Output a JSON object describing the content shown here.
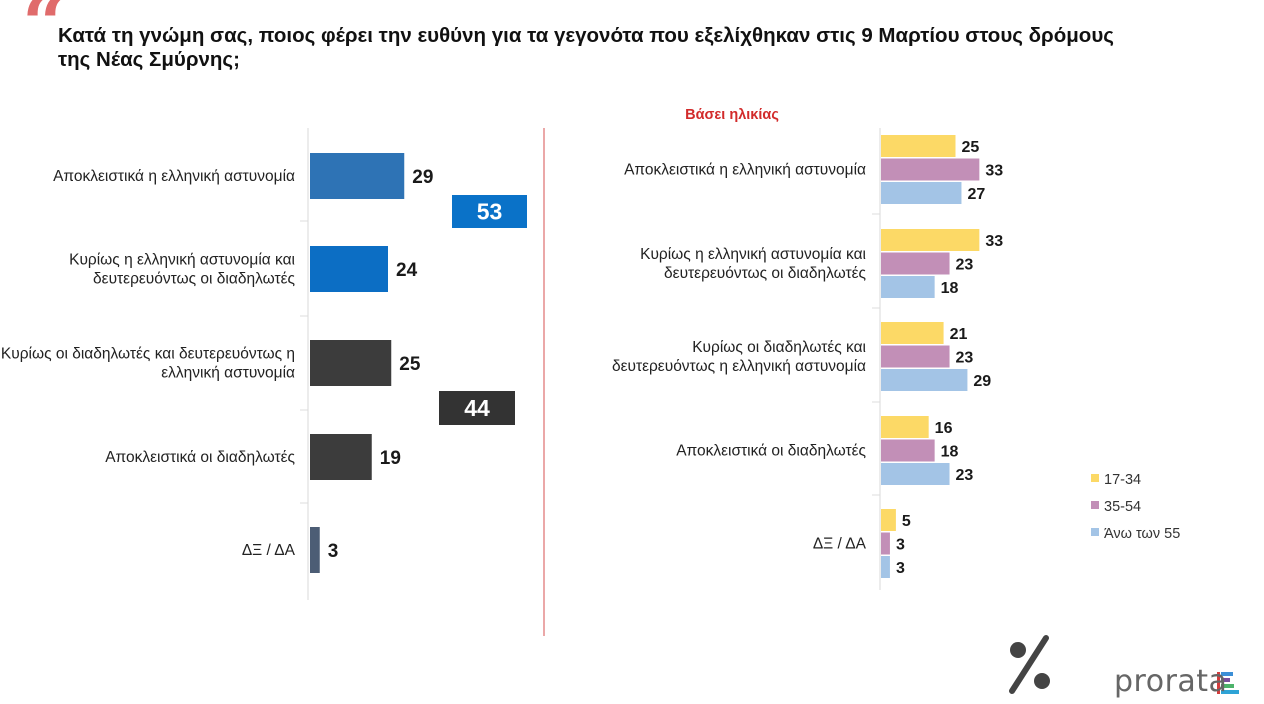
{
  "header": {
    "quote_glyph": "“",
    "title": "Κατά τη γνώμη σας, ποιος φέρει την ευθύνη για τα γεγονότα που εξελίχθηκαν στις 9 Μαρτίου στους δρόμους της Νέας Σμύρνης;"
  },
  "brand": {
    "name": "prorata",
    "logo_symbol": "%"
  },
  "chart_data": [
    {
      "type": "bar",
      "orientation": "horizontal",
      "title": "",
      "categories": [
        "Αποκλειστικά η ελληνική αστυνομία",
        "Κυρίως η ελληνική αστυνομία και δευτερευόντως οι διαδηλωτές",
        "Κυρίως οι διαδηλωτές και δευτερευόντως η ελληνική αστυνομία",
        "Αποκλειστικά οι διαδηλωτές",
        "ΔΞ / ΔΑ"
      ],
      "values": [
        29,
        24,
        25,
        19,
        3
      ],
      "colors": [
        "#2e73b5",
        "#0c6ec4",
        "#3c3c3c",
        "#3c3c3c",
        "#4c5d75"
      ],
      "totals": [
        {
          "label": "53",
          "sum_of": [
            0,
            1
          ],
          "color": "#0a72c8"
        },
        {
          "label": "44",
          "sum_of": [
            2,
            3
          ],
          "color": "#333333"
        }
      ],
      "xlim": [
        0,
        60
      ]
    },
    {
      "type": "bar",
      "orientation": "horizontal",
      "title": "Βάσει ηλικίας",
      "categories": [
        "Αποκλειστικά η ελληνική αστυνομία",
        "Κυρίως η ελληνική αστυνομία και δευτερευόντως οι διαδηλωτές",
        "Κυρίως οι διαδηλωτές και δευτερευόντως η ελληνική αστυνομία",
        "Αποκλειστικά οι διαδηλωτές",
        "ΔΞ / ΔΑ"
      ],
      "series": [
        {
          "name": "17-34",
          "color": "#fcd966",
          "values": [
            25,
            33,
            21,
            16,
            5
          ]
        },
        {
          "name": "35-54",
          "color": "#c28fb7",
          "values": [
            33,
            23,
            23,
            18,
            3
          ]
        },
        {
          "name": "Άνω των 55",
          "color": "#a3c4e6",
          "values": [
            27,
            18,
            29,
            23,
            3
          ]
        }
      ],
      "legend": "right",
      "xlim": [
        0,
        40
      ]
    }
  ]
}
